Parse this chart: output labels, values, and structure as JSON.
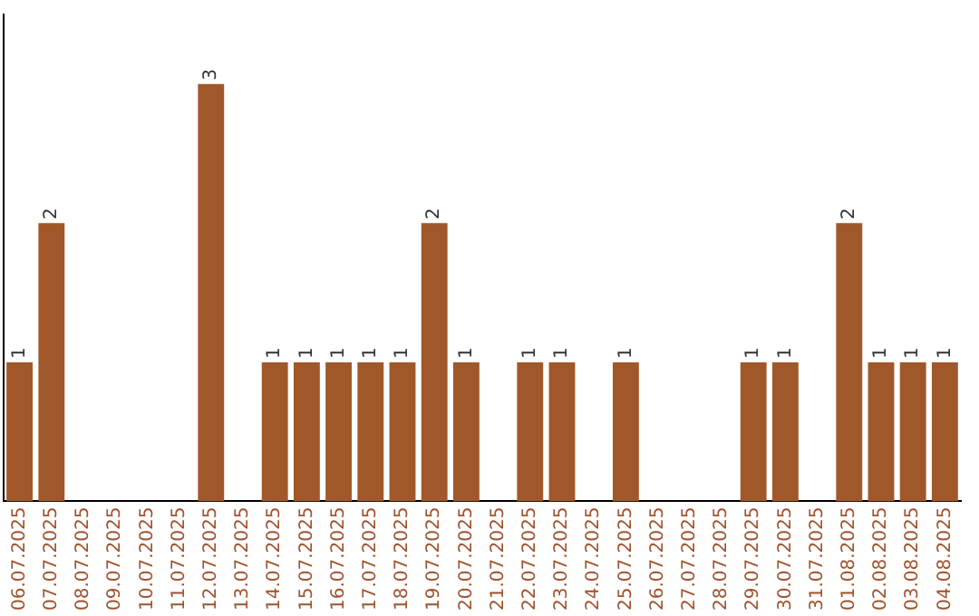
{
  "chart_data": {
    "type": "bar",
    "categories": [
      "06.07.2025",
      "07.07.2025",
      "08.07.2025",
      "09.07.2025",
      "10.07.2025",
      "11.07.2025",
      "12.07.2025",
      "13.07.2025",
      "14.07.2025",
      "15.07.2025",
      "16.07.2025",
      "17.07.2025",
      "18.07.2025",
      "19.07.2025",
      "20.07.2025",
      "21.07.2025",
      "22.07.2025",
      "23.07.2025",
      "24.07.2025",
      "25.07.2025",
      "26.07.2025",
      "27.07.2025",
      "28.07.2025",
      "29.07.2025",
      "30.07.2025",
      "31.07.2025",
      "01.08.2025",
      "02.08.2025",
      "03.08.2025",
      "04.08.2025"
    ],
    "values": [
      1,
      2,
      0,
      0,
      0,
      0,
      3,
      0,
      1,
      1,
      1,
      1,
      1,
      2,
      1,
      0,
      1,
      1,
      0,
      1,
      0,
      0,
      0,
      1,
      1,
      0,
      2,
      1,
      1,
      1
    ],
    "value_labels": [
      "1",
      "2",
      null,
      null,
      null,
      null,
      "3",
      null,
      "1",
      "1",
      "1",
      "1",
      "1",
      "2",
      "1",
      null,
      "1",
      "1",
      null,
      "1",
      null,
      null,
      null,
      "1",
      "1",
      null,
      "2",
      "1",
      "1",
      "1"
    ],
    "color": "#a0582a",
    "grid": false,
    "legend": false,
    "tick_labels": "x"
  }
}
